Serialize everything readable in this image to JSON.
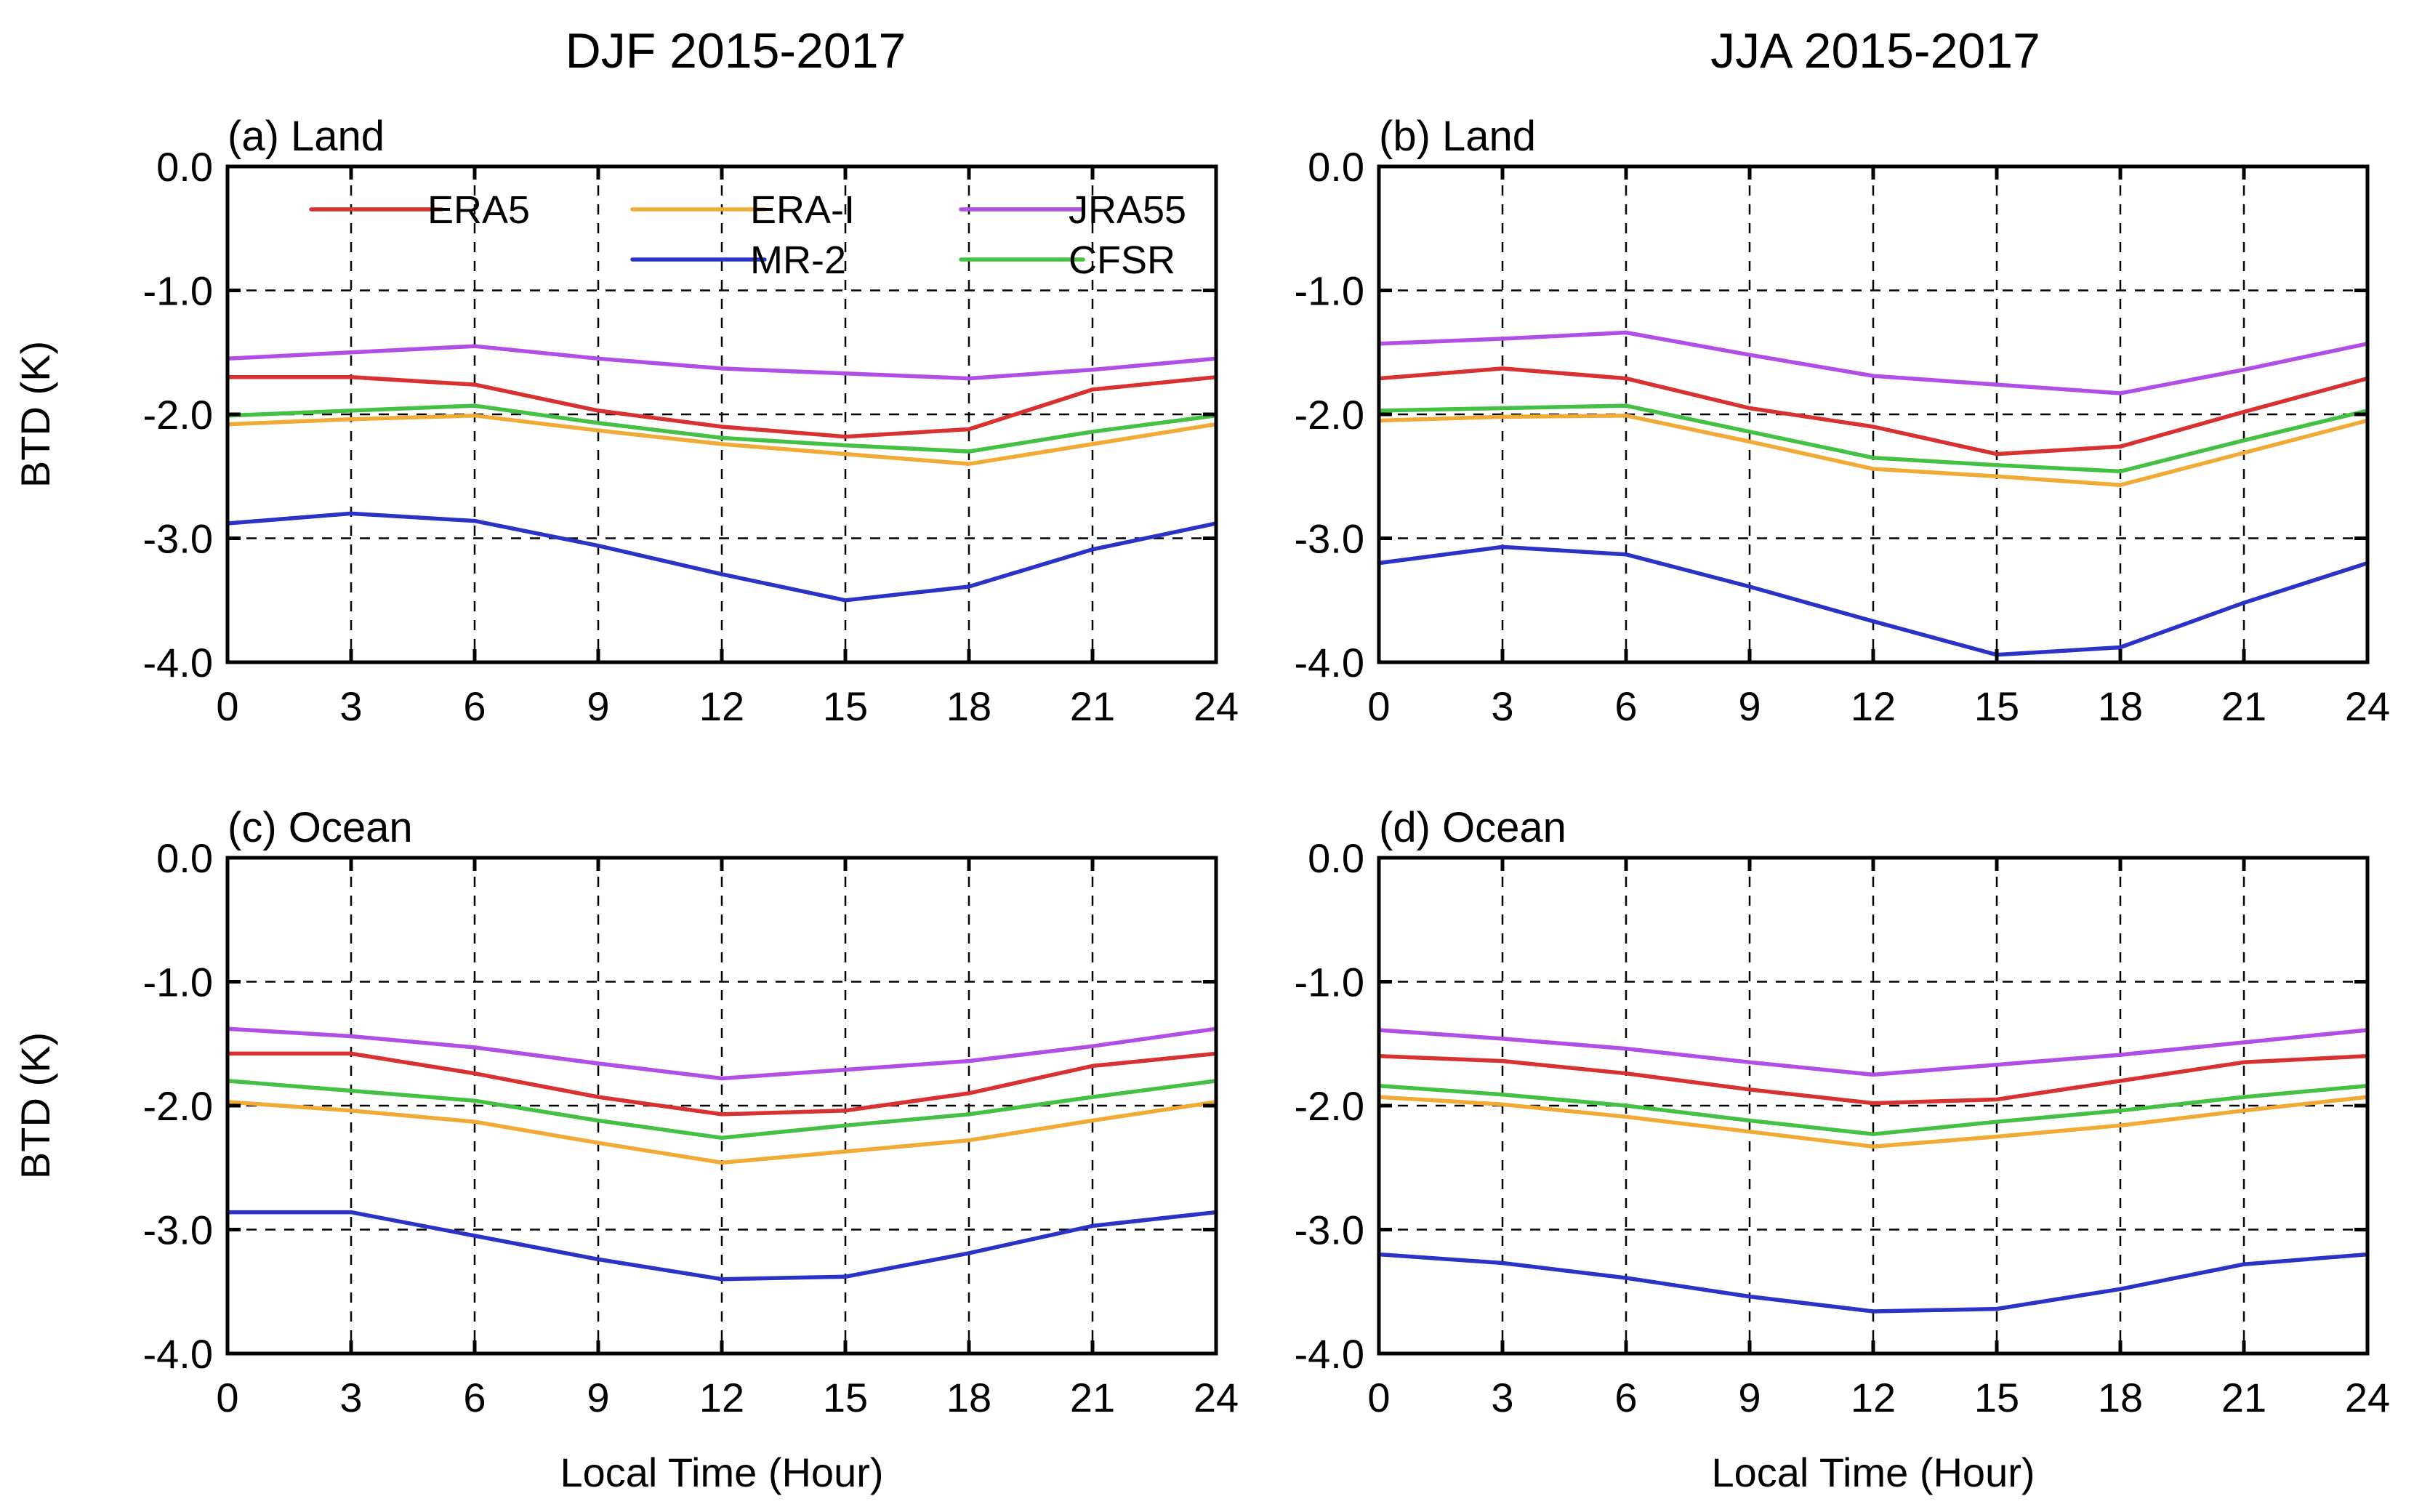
{
  "column_titles": [
    "DJF 2015-2017",
    "JJA 2015-2017"
  ],
  "series_colors": {
    "ERA5": "#d93030",
    "ERA-I": "#f0aa35",
    "JRA55": "#b04fe6",
    "MR-2": "#2a32c8",
    "CFSR": "#44c044"
  },
  "legend": [
    {
      "name": "ERA5"
    },
    {
      "name": "ERA-I"
    },
    {
      "name": "JRA55"
    },
    {
      "name": "MR-2"
    },
    {
      "name": "CFSR"
    }
  ],
  "chart_data": [
    {
      "type": "line",
      "title": "(a) Land",
      "xlabel": "",
      "ylabel": "BTD (K)",
      "x": [
        0,
        3,
        6,
        9,
        12,
        15,
        18,
        21,
        24
      ],
      "xticks": [
        "0",
        "3",
        "6",
        "9",
        "12",
        "15",
        "18",
        "21",
        "24"
      ],
      "yticks": [
        "0.0",
        "-1.0",
        "-2.0",
        "-3.0",
        "-4.0"
      ],
      "xlim": [
        0,
        24
      ],
      "ylim": [
        -4.0,
        0.0
      ],
      "grid": true,
      "legend_position": "top",
      "series": [
        {
          "name": "JRA55",
          "values": [
            -1.55,
            -1.5,
            -1.45,
            -1.55,
            -1.63,
            -1.67,
            -1.71,
            -1.64,
            -1.55
          ]
        },
        {
          "name": "ERA5",
          "values": [
            -1.7,
            -1.7,
            -1.76,
            -1.97,
            -2.1,
            -2.18,
            -2.12,
            -1.8,
            -1.7
          ]
        },
        {
          "name": "CFSR",
          "values": [
            -2.01,
            -1.97,
            -1.93,
            -2.07,
            -2.19,
            -2.25,
            -2.3,
            -2.14,
            -2.01
          ]
        },
        {
          "name": "ERA-I",
          "values": [
            -2.08,
            -2.04,
            -2.01,
            -2.13,
            -2.24,
            -2.32,
            -2.4,
            -2.24,
            -2.08
          ]
        },
        {
          "name": "MR-2",
          "values": [
            -2.88,
            -2.8,
            -2.86,
            -3.06,
            -3.29,
            -3.5,
            -3.39,
            -3.09,
            -2.88
          ]
        }
      ]
    },
    {
      "type": "line",
      "title": "(b) Land",
      "xlabel": "",
      "ylabel": "",
      "x": [
        0,
        3,
        6,
        9,
        12,
        15,
        18,
        21,
        24
      ],
      "xticks": [
        "0",
        "3",
        "6",
        "9",
        "12",
        "15",
        "18",
        "21",
        "24"
      ],
      "yticks": [
        "0.0",
        "-1.0",
        "-2.0",
        "-3.0",
        "-4.0"
      ],
      "xlim": [
        0,
        24
      ],
      "ylim": [
        -4.0,
        0.0
      ],
      "grid": true,
      "series": [
        {
          "name": "JRA55",
          "values": [
            -1.43,
            -1.39,
            -1.34,
            -1.52,
            -1.69,
            -1.76,
            -1.83,
            -1.64,
            -1.43
          ]
        },
        {
          "name": "ERA5",
          "values": [
            -1.71,
            -1.63,
            -1.71,
            -1.95,
            -2.1,
            -2.32,
            -2.26,
            -1.98,
            -1.71
          ]
        },
        {
          "name": "CFSR",
          "values": [
            -1.97,
            -1.95,
            -1.93,
            -2.14,
            -2.35,
            -2.41,
            -2.46,
            -2.21,
            -1.97
          ]
        },
        {
          "name": "ERA-I",
          "values": [
            -2.05,
            -2.02,
            -2.01,
            -2.22,
            -2.44,
            -2.5,
            -2.57,
            -2.31,
            -2.05
          ]
        },
        {
          "name": "MR-2",
          "values": [
            -3.2,
            -3.07,
            -3.13,
            -3.39,
            -3.67,
            -3.94,
            -3.88,
            -3.52,
            -3.2
          ]
        }
      ]
    },
    {
      "type": "line",
      "title": "(c) Ocean",
      "xlabel": "Local Time (Hour)",
      "ylabel": "BTD (K)",
      "x": [
        0,
        3,
        6,
        9,
        12,
        15,
        18,
        21,
        24
      ],
      "xticks": [
        "0",
        "3",
        "6",
        "9",
        "12",
        "15",
        "18",
        "21",
        "24"
      ],
      "yticks": [
        "0.0",
        "-1.0",
        "-2.0",
        "-3.0",
        "-4.0"
      ],
      "xlim": [
        0,
        24
      ],
      "ylim": [
        -4.0,
        0.0
      ],
      "grid": true,
      "series": [
        {
          "name": "JRA55",
          "values": [
            -1.38,
            -1.44,
            -1.53,
            -1.66,
            -1.78,
            -1.71,
            -1.64,
            -1.52,
            -1.38
          ]
        },
        {
          "name": "ERA5",
          "values": [
            -1.58,
            -1.58,
            -1.74,
            -1.93,
            -2.07,
            -2.04,
            -1.9,
            -1.68,
            -1.58
          ]
        },
        {
          "name": "CFSR",
          "values": [
            -1.8,
            -1.88,
            -1.96,
            -2.12,
            -2.26,
            -2.16,
            -2.07,
            -1.93,
            -1.8
          ]
        },
        {
          "name": "ERA-I",
          "values": [
            -1.97,
            -2.04,
            -2.13,
            -2.3,
            -2.46,
            -2.37,
            -2.28,
            -2.12,
            -1.97
          ]
        },
        {
          "name": "MR-2",
          "values": [
            -2.86,
            -2.86,
            -3.05,
            -3.24,
            -3.4,
            -3.38,
            -3.19,
            -2.97,
            -2.86
          ]
        }
      ]
    },
    {
      "type": "line",
      "title": "(d) Ocean",
      "xlabel": "Local Time (Hour)",
      "ylabel": "",
      "x": [
        0,
        3,
        6,
        9,
        12,
        15,
        18,
        21,
        24
      ],
      "xticks": [
        "0",
        "3",
        "6",
        "9",
        "12",
        "15",
        "18",
        "21",
        "24"
      ],
      "yticks": [
        "0.0",
        "-1.0",
        "-2.0",
        "-3.0",
        "-4.0"
      ],
      "xlim": [
        0,
        24
      ],
      "ylim": [
        -4.0,
        0.0
      ],
      "grid": true,
      "series": [
        {
          "name": "JRA55",
          "values": [
            -1.39,
            -1.46,
            -1.54,
            -1.65,
            -1.75,
            -1.67,
            -1.59,
            -1.49,
            -1.39
          ]
        },
        {
          "name": "ERA5",
          "values": [
            -1.6,
            -1.64,
            -1.74,
            -1.87,
            -1.98,
            -1.95,
            -1.8,
            -1.65,
            -1.6
          ]
        },
        {
          "name": "CFSR",
          "values": [
            -1.84,
            -1.91,
            -2.0,
            -2.12,
            -2.23,
            -2.13,
            -2.04,
            -1.93,
            -1.84
          ]
        },
        {
          "name": "ERA-I",
          "values": [
            -1.93,
            -1.99,
            -2.09,
            -2.21,
            -2.33,
            -2.25,
            -2.16,
            -2.04,
            -1.93
          ]
        },
        {
          "name": "MR-2",
          "values": [
            -3.2,
            -3.27,
            -3.39,
            -3.54,
            -3.66,
            -3.64,
            -3.48,
            -3.28,
            -3.2
          ]
        }
      ]
    }
  ]
}
